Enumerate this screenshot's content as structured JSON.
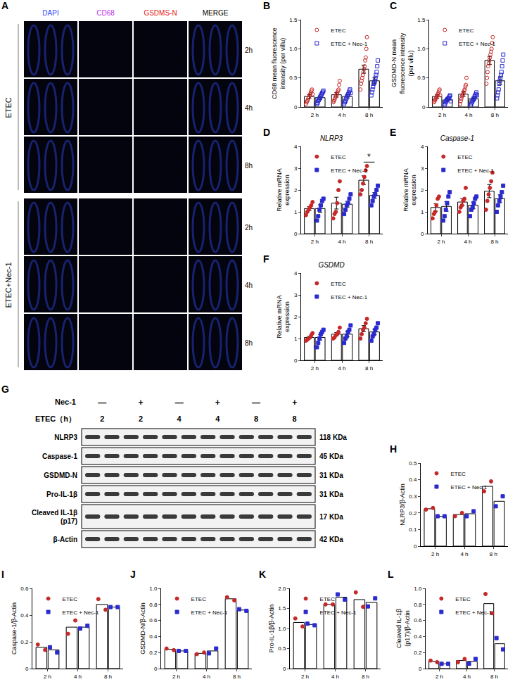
{
  "panel_A": {
    "letter": "A",
    "columns": [
      "DAPI",
      "CD68",
      "GSDMS-N",
      "MERGE"
    ],
    "colors": [
      "#2a46ff",
      "#c030f0",
      "#e82020",
      "#000000"
    ],
    "groups": [
      {
        "label": "ETEC",
        "times": [
          "2h",
          "4h",
          "8h"
        ]
      },
      {
        "label": "ETEC+Nec-1",
        "times": [
          "2h",
          "4h",
          "8h"
        ]
      }
    ]
  },
  "panel_G": {
    "letter": "G",
    "treatment": "Nec-1",
    "time_label": "ETEC（h）",
    "lanes": [
      {
        "nec1": "—",
        "etec": "2"
      },
      {
        "nec1": "+",
        "etec": "2"
      },
      {
        "nec1": "—",
        "etec": "4"
      },
      {
        "nec1": "+",
        "etec": "4"
      },
      {
        "nec1": "—",
        "etec": "8"
      },
      {
        "nec1": "+",
        "etec": "8"
      }
    ],
    "rows": [
      {
        "label": "NLRP3",
        "size": "118 KDa"
      },
      {
        "label": "Caspase-1",
        "size": "45 KDa"
      },
      {
        "label": "GSDMD-N",
        "size": "31 KDa"
      },
      {
        "label": "Pro-IL-1β",
        "size": "31 KDa"
      },
      {
        "label": "Cleaved IL-1β (p17)",
        "size": "17 KDa"
      },
      {
        "label": "β-Actin",
        "size": "42 KDa"
      }
    ]
  },
  "chart_data": [
    {
      "panel": "B",
      "type": "bar",
      "y_label": "CD68 mean fluorescence intensity (per villu)",
      "categories": [
        "2 h",
        "4 h",
        "8 h"
      ],
      "ylim": [
        0,
        1.5
      ],
      "yticks": [
        0,
        0.5,
        {
          "value": 1,
          "label": "1.0"
        },
        1.5
      ],
      "legend": "top left",
      "series": [
        {
          "name": "ETEC",
          "color": "#c62828",
          "marker": "circle-open",
          "values": [
            0.18,
            0.21,
            0.65
          ],
          "errors": [
            0.03,
            0.04,
            0.07
          ],
          "points": [
            [
              0.05,
              0.08,
              0.1,
              0.12,
              0.15,
              0.17,
              0.2,
              0.22,
              0.25,
              0.28,
              0.3,
              0.22
            ],
            [
              0.08,
              0.1,
              0.12,
              0.15,
              0.18,
              0.2,
              0.22,
              0.25,
              0.28,
              0.3,
              0.38,
              0.45
            ],
            [
              0.3,
              0.4,
              0.45,
              0.5,
              0.55,
              0.6,
              0.65,
              0.7,
              0.8,
              0.85,
              1.0,
              1.2
            ]
          ]
        },
        {
          "name": "ETEC + Nec-1",
          "color": "#2a2ad0",
          "marker": "square-open",
          "values": [
            0.16,
            0.18,
            0.45
          ],
          "errors": [
            0.03,
            0.03,
            0.05
          ],
          "points": [
            [
              0.05,
              0.07,
              0.1,
              0.12,
              0.14,
              0.16,
              0.18,
              0.2,
              0.22,
              0.24,
              0.26,
              0.28
            ],
            [
              0.05,
              0.08,
              0.1,
              0.13,
              0.15,
              0.18,
              0.2,
              0.22,
              0.25,
              0.28,
              0.3,
              0.24
            ],
            [
              0.2,
              0.25,
              0.3,
              0.35,
              0.4,
              0.42,
              0.45,
              0.5,
              0.55,
              0.6,
              0.7,
              0.8
            ]
          ]
        }
      ]
    },
    {
      "panel": "C",
      "type": "bar",
      "y_label": "GSDMD-N mean fluorescence intensity (per villu)",
      "categories": [
        "2 h",
        "4 h",
        "8 h"
      ],
      "ylim": [
        0,
        1.5
      ],
      "yticks": [
        0,
        0.5,
        {
          "value": 1,
          "label": "1.0"
        },
        1.5
      ],
      "legend": "top left",
      "series": [
        {
          "name": "ETEC",
          "color": "#c62828",
          "marker": "circle-open",
          "values": [
            0.18,
            0.22,
            0.8
          ],
          "errors": [
            0.03,
            0.04,
            0.07
          ],
          "points": [
            [
              0.08,
              0.1,
              0.12,
              0.14,
              0.16,
              0.18,
              0.2,
              0.22,
              0.25,
              0.28,
              0.3,
              0.2
            ],
            [
              0.05,
              0.1,
              0.14,
              0.18,
              0.2,
              0.22,
              0.25,
              0.28,
              0.3,
              0.35,
              0.38,
              0.5
            ],
            [
              0.4,
              0.5,
              0.6,
              0.7,
              0.75,
              0.8,
              0.85,
              0.9,
              0.95,
              1.0,
              1.1,
              1.2
            ]
          ]
        },
        {
          "name": "ETEC + Nec-1",
          "color": "#2a2ad0",
          "marker": "square-open",
          "values": [
            0.12,
            0.14,
            0.45
          ],
          "errors": [
            0.02,
            0.03,
            0.06
          ],
          "points": [
            [
              0.03,
              0.05,
              0.08,
              0.1,
              0.12,
              0.13,
              0.14,
              0.15,
              0.16,
              0.18,
              0.2,
              0.1
            ],
            [
              0.02,
              0.05,
              0.08,
              0.1,
              0.12,
              0.14,
              0.15,
              0.18,
              0.2,
              0.22,
              0.25,
              0.2
            ],
            [
              0.15,
              0.2,
              0.25,
              0.3,
              0.4,
              0.45,
              0.5,
              0.55,
              0.6,
              0.7,
              0.8,
              0.9
            ]
          ]
        }
      ]
    },
    {
      "panel": "D",
      "type": "bar",
      "title": "NLRP3",
      "y_label": "Relative mRNA expression",
      "categories": [
        "2 h",
        "4 h",
        "8 h"
      ],
      "ylim": [
        0,
        4
      ],
      "yticks": [
        0,
        1,
        2,
        3,
        4
      ],
      "legend": "top left",
      "annotations": [
        {
          "category": "8 h",
          "text": "*"
        }
      ],
      "series": [
        {
          "name": "ETEC",
          "color": "#c62828",
          "marker": "circle",
          "values": [
            1.15,
            1.4,
            2.45
          ],
          "errors": [
            0.09,
            0.27,
            0.2
          ],
          "points": [
            [
              0.85,
              1.0,
              1.1,
              1.2,
              1.3,
              1.45
            ],
            [
              0.7,
              0.9,
              1.0,
              1.4,
              2.0,
              2.4
            ],
            [
              1.8,
              2.0,
              2.3,
              2.6,
              2.9,
              3.1
            ]
          ]
        },
        {
          "name": "ETEC + Nec-1",
          "color": "#2a2ad0",
          "marker": "square",
          "values": [
            1.15,
            1.35,
            1.75
          ],
          "errors": [
            0.17,
            0.13,
            0.13
          ],
          "points": [
            [
              0.6,
              0.8,
              1.1,
              1.3,
              1.5,
              1.6
            ],
            [
              0.9,
              1.1,
              1.3,
              1.4,
              1.6,
              1.8
            ],
            [
              1.3,
              1.5,
              1.7,
              1.8,
              2.0,
              2.2
            ]
          ]
        }
      ]
    },
    {
      "panel": "E",
      "type": "bar",
      "title": "Caspase-1",
      "y_label": "Relative mRNA expression",
      "categories": [
        "2 h",
        "4 h",
        "8 h"
      ],
      "ylim": [
        0,
        4
      ],
      "yticks": [
        0,
        1,
        2,
        3,
        4
      ],
      "legend": "top left",
      "series": [
        {
          "name": "ETEC",
          "color": "#c62828",
          "marker": "circle",
          "values": [
            1.2,
            1.45,
            1.95
          ],
          "errors": [
            0.17,
            0.15,
            0.3
          ],
          "points": [
            [
              0.7,
              0.9,
              1.0,
              1.3,
              1.6,
              1.7
            ],
            [
              1.0,
              1.2,
              1.3,
              1.5,
              1.6,
              2.1
            ],
            [
              1.1,
              1.5,
              1.8,
              2.1,
              2.4,
              2.8
            ]
          ]
        },
        {
          "name": "ETEC + Nec-1",
          "color": "#2a2ad0",
          "marker": "square",
          "values": [
            1.25,
            1.3,
            1.6
          ],
          "errors": [
            0.22,
            0.15,
            0.18
          ],
          "points": [
            [
              0.6,
              0.8,
              1.1,
              1.4,
              1.7,
              1.9
            ],
            [
              0.8,
              1.1,
              1.2,
              1.4,
              1.6,
              1.7
            ],
            [
              1.0,
              1.3,
              1.5,
              1.7,
              1.9,
              2.2
            ]
          ]
        }
      ]
    },
    {
      "panel": "F",
      "type": "bar",
      "title": "GSDMD",
      "y_label": "Relative mRNA expression",
      "categories": [
        "2 h",
        "4 h",
        "8 h"
      ],
      "ylim": [
        0,
        4
      ],
      "yticks": [
        0,
        1,
        2,
        3,
        4
      ],
      "legend": "top left",
      "series": [
        {
          "name": "ETEC",
          "color": "#c62828",
          "marker": "circle",
          "values": [
            1.05,
            1.2,
            1.45
          ],
          "errors": [
            0.05,
            0.07,
            0.14
          ],
          "points": [
            [
              0.9,
              0.95,
              1.0,
              1.05,
              1.15,
              1.25
            ],
            [
              1.0,
              1.05,
              1.15,
              1.2,
              1.3,
              1.5
            ],
            [
              1.0,
              1.2,
              1.4,
              1.5,
              1.7,
              1.9
            ]
          ]
        },
        {
          "name": "ETEC + Nec-1",
          "color": "#2a2ad0",
          "marker": "square",
          "values": [
            1.05,
            1.2,
            1.3
          ],
          "errors": [
            0.12,
            0.12,
            0.12
          ],
          "points": [
            [
              0.6,
              0.8,
              1.0,
              1.2,
              1.3,
              1.4
            ],
            [
              0.8,
              1.0,
              1.1,
              1.3,
              1.4,
              1.6
            ],
            [
              0.9,
              1.1,
              1.2,
              1.4,
              1.5,
              1.7
            ]
          ]
        }
      ]
    },
    {
      "panel": "H",
      "type": "bar",
      "y_label": "NLRP3/β-Actin",
      "categories": [
        "2 h",
        "4 h",
        "8 h"
      ],
      "ylim": [
        0,
        0.5
      ],
      "yticks": [
        0,
        0.1,
        0.2,
        0.3,
        0.4,
        0.5
      ],
      "legend": "top left",
      "series": [
        {
          "name": "ETEC",
          "color": "#c62828",
          "marker": "circle",
          "values": [
            0.225,
            0.19,
            0.36
          ],
          "points": [
            [
              0.22,
              0.23
            ],
            [
              0.18,
              0.2
            ],
            [
              0.33,
              0.39
            ]
          ]
        },
        {
          "name": "ETEC + Nec-1",
          "color": "#2a2ad0",
          "marker": "square",
          "values": [
            0.18,
            0.195,
            0.27
          ],
          "points": [
            [
              0.18,
              0.18
            ],
            [
              0.18,
              0.21
            ],
            [
              0.24,
              0.3
            ]
          ]
        }
      ]
    },
    {
      "panel": "I",
      "type": "bar",
      "y_label": "Caspase-1/β-Actin",
      "categories": [
        "2 h",
        "4 h",
        "8 h"
      ],
      "ylim": [
        0,
        0.6
      ],
      "yticks": [
        0,
        0.2,
        0.4,
        0.6
      ],
      "legend": "top left",
      "series": [
        {
          "name": "ETEC",
          "color": "#c62828",
          "marker": "circle",
          "values": [
            0.16,
            0.31,
            0.48
          ],
          "points": [
            [
              0.18,
              0.14
            ],
            [
              0.26,
              0.36
            ],
            [
              0.52,
              0.44
            ]
          ]
        },
        {
          "name": "ETEC + Nec-1",
          "color": "#2a2ad0",
          "marker": "square",
          "values": [
            0.14,
            0.31,
            0.46
          ],
          "points": [
            [
              0.16,
              0.12
            ],
            [
              0.3,
              0.32
            ],
            [
              0.46,
              0.46
            ]
          ]
        }
      ]
    },
    {
      "panel": "J",
      "type": "bar",
      "y_label": "GSDMD-N/β-Actin",
      "categories": [
        "2 h",
        "4 h",
        "8 h"
      ],
      "ylim": [
        0,
        1
      ],
      "yticks": [
        0,
        0.2,
        0.4,
        0.6,
        0.8,
        {
          "value": 1,
          "label": "1.0"
        }
      ],
      "legend": "top left",
      "series": [
        {
          "name": "ETEC",
          "color": "#c62828",
          "marker": "circle",
          "values": [
            0.24,
            0.19,
            0.87
          ],
          "points": [
            [
              0.25,
              0.23
            ],
            [
              0.18,
              0.2
            ],
            [
              0.89,
              0.85
            ]
          ]
        },
        {
          "name": "ETEC + Nec-1",
          "color": "#2a2ad0",
          "marker": "square",
          "values": [
            0.22,
            0.22,
            0.73
          ],
          "points": [
            [
              0.22,
              0.22
            ],
            [
              0.19,
              0.25
            ],
            [
              0.74,
              0.72
            ]
          ]
        }
      ]
    },
    {
      "panel": "K",
      "type": "bar",
      "y_label": "Pro-IL-1β/β-Actin",
      "categories": [
        "2 h",
        "4 h",
        "8 h"
      ],
      "ylim": [
        0,
        2
      ],
      "yticks": [
        0,
        0.5,
        {
          "value": 1,
          "label": "1.0"
        },
        1.5,
        {
          "value": 2,
          "label": "2.0"
        }
      ],
      "legend": "top left",
      "series": [
        {
          "name": "ETEC",
          "color": "#c62828",
          "marker": "circle",
          "values": [
            1.15,
            1.6,
            1.72
          ],
          "points": [
            [
              1.25,
              1.05
            ],
            [
              1.6,
              1.6
            ],
            [
              1.9,
              1.54
            ]
          ]
        },
        {
          "name": "ETEC + Nec-1",
          "color": "#2a2ad0",
          "marker": "square",
          "values": [
            1.1,
            1.78,
            1.65
          ],
          "points": [
            [
              1.12,
              1.08
            ],
            [
              1.85,
              1.72
            ],
            [
              1.55,
              1.75
            ]
          ]
        }
      ]
    },
    {
      "panel": "L",
      "type": "bar",
      "y_label": "Cleaved IL-1β (p17)/β-Actin",
      "categories": [
        "2 h",
        "4 h",
        "8 h"
      ],
      "ylim": [
        0,
        1
      ],
      "yticks": [
        0,
        0.2,
        0.4,
        0.6,
        0.8,
        {
          "value": 1,
          "label": "1.0"
        }
      ],
      "legend": "top left",
      "series": [
        {
          "name": "ETEC",
          "color": "#c62828",
          "marker": "circle",
          "values": [
            0.09,
            0.1,
            0.81
          ],
          "points": [
            [
              0.1,
              0.08
            ],
            [
              0.08,
              0.12
            ],
            [
              0.93,
              0.69
            ]
          ]
        },
        {
          "name": "ETEC + Nec-1",
          "color": "#2a2ad0",
          "marker": "square",
          "values": [
            0.06,
            0.09,
            0.31
          ],
          "points": [
            [
              0.06,
              0.06
            ],
            [
              0.06,
              0.12
            ],
            [
              0.38,
              0.24
            ]
          ]
        }
      ]
    }
  ]
}
